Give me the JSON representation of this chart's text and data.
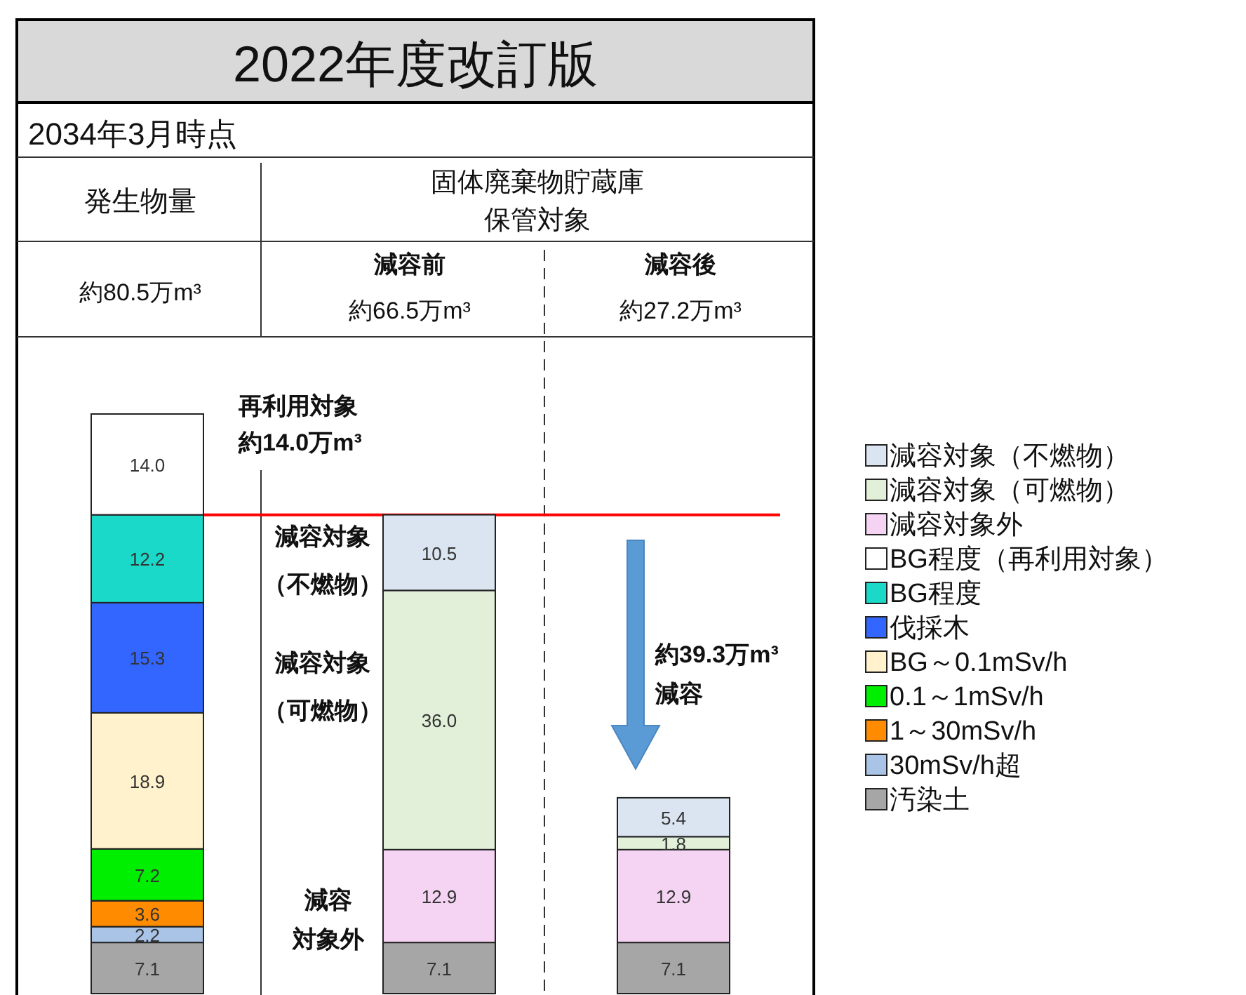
{
  "chart_data": {
    "type": "bar",
    "stacked": true,
    "title": "2022年度改訂版",
    "subtitle": "2034年3月時点",
    "categories": [
      null,
      null,
      null
    ],
    "series": [
      {
        "name": "汚染土",
        "color": "#a6a6a6",
        "values": [
          7.1,
          7.1,
          7.1
        ],
        "value_labels": [
          "7.1",
          "7.1",
          "7.1"
        ]
      },
      {
        "name": " 30mSv/h超",
        "color": "#a9c4e6",
        "values": [
          2.2,
          null,
          null
        ],
        "value_labels": [
          "2.2",
          null,
          null
        ]
      },
      {
        "name": "1～30mSv/h",
        "color": "#ff8c00",
        "values": [
          3.6,
          null,
          null
        ],
        "value_labels": [
          "3.6",
          null,
          null
        ]
      },
      {
        "name": "0.1～1mSv/h",
        "color": "#00ee00",
        "values": [
          7.2,
          null,
          null
        ],
        "value_labels": [
          "7.2",
          null,
          null
        ]
      },
      {
        "name": "BG～0.1mSv/h",
        "color": "#fff2cc",
        "values": [
          18.9,
          null,
          null
        ],
        "value_labels": [
          "18.9",
          null,
          null
        ]
      },
      {
        "name": "伐採木",
        "color": "#3366ff",
        "values": [
          15.3,
          null,
          null
        ],
        "value_labels": [
          "15.3",
          null,
          null
        ]
      },
      {
        "name": "BG程度",
        "color": "#1ad9c9",
        "values": [
          12.2,
          null,
          null
        ],
        "value_labels": [
          "12.2",
          null,
          null
        ]
      },
      {
        "name": "BG程度（再利用対象）",
        "color": "#ffffff",
        "values": [
          14.0,
          null,
          null
        ],
        "value_labels": [
          "14.0",
          null,
          null
        ]
      },
      {
        "name": "減容対象外",
        "color": "#f4d4f2",
        "values": [
          null,
          12.9,
          12.9
        ],
        "value_labels": [
          null,
          "12.9",
          "12.9"
        ]
      },
      {
        "name": "減容対象（可燃物）",
        "color": "#e2efd9",
        "values": [
          null,
          36.0,
          1.8
        ],
        "value_labels": [
          null,
          "36.0",
          "1.8"
        ]
      },
      {
        "name": "減容対象（不燃物）",
        "color": "#dbe5f1",
        "values": [
          null,
          10.5,
          5.4
        ],
        "value_labels": [
          null,
          "10.5",
          "5.4"
        ]
      }
    ],
    "ref_lines": [
      {
        "axis": "y",
        "value": 66.5,
        "color": "#ff0000"
      }
    ],
    "annotations": [
      "発生物量",
      "固体廃棄物貯蔵庫保管対象",
      "約80.5万m³",
      "減容前",
      "約66.5万m³",
      "減容後",
      "約27.2万m³",
      "再利用対象約14.0万m³",
      "減容対象（不燃物）",
      "減容対象（可燃物）",
      "約39.3万m³減容",
      "減容対象外"
    ],
    "legend": "right"
  }
}
